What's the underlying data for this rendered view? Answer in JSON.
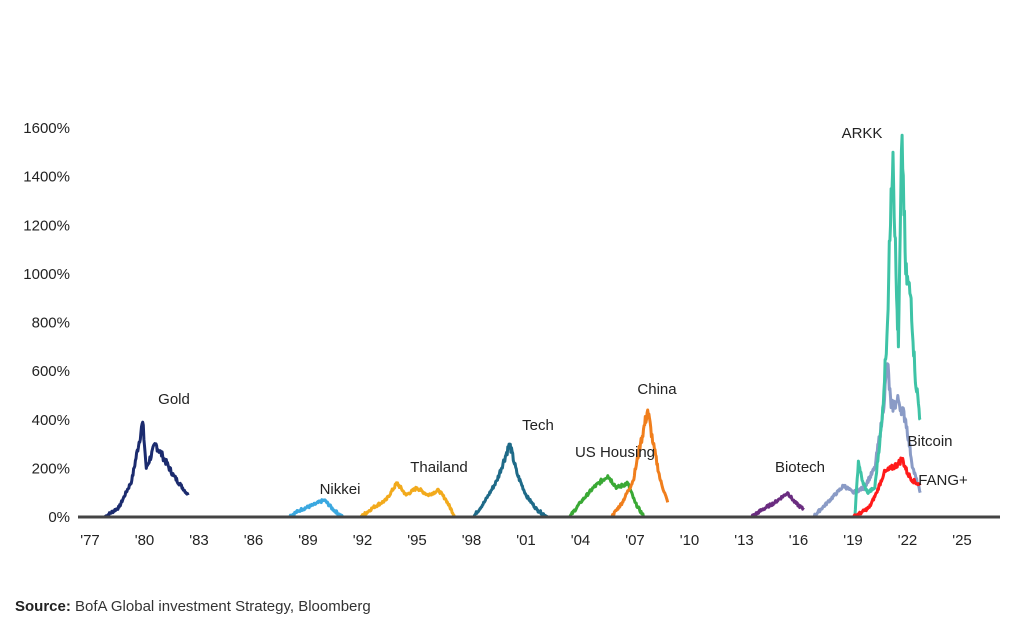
{
  "chart_data": {
    "type": "line",
    "title": "",
    "xlabel": "",
    "ylabel": "",
    "xlim": [
      1977,
      2027
    ],
    "ylim": [
      0,
      1600
    ],
    "x_ticks": [
      "'77",
      "'80",
      "'83",
      "'86",
      "'89",
      "'92",
      "'95",
      "'98",
      "'01",
      "'04",
      "'07",
      "'10",
      "'13",
      "'16",
      "'19",
      "'22",
      "'25"
    ],
    "y_ticks": [
      "0%",
      "200%",
      "400%",
      "600%",
      "800%",
      "1000%",
      "1200%",
      "1400%",
      "1600%"
    ],
    "grid": false,
    "series": [
      {
        "name": "Gold",
        "color": "#1b2b6e",
        "points": [
          [
            1977.8,
            0
          ],
          [
            1978.6,
            40
          ],
          [
            1979.3,
            150
          ],
          [
            1979.9,
            390
          ],
          [
            1980.1,
            200
          ],
          [
            1980.6,
            300
          ],
          [
            1981.0,
            250
          ],
          [
            1981.6,
            170
          ],
          [
            1982.0,
            130
          ],
          [
            1982.4,
            90
          ]
        ]
      },
      {
        "name": "Nikkei",
        "color": "#3aa8e0",
        "points": [
          [
            1987.9,
            0
          ],
          [
            1988.6,
            30
          ],
          [
            1989.3,
            50
          ],
          [
            1989.9,
            70
          ],
          [
            1990.4,
            30
          ],
          [
            1990.9,
            0
          ]
        ]
      },
      {
        "name": "Thailand",
        "color": "#f2aa1c",
        "points": [
          [
            1991.9,
            0
          ],
          [
            1992.6,
            40
          ],
          [
            1993.3,
            70
          ],
          [
            1993.9,
            140
          ],
          [
            1994.4,
            90
          ],
          [
            1995.0,
            120
          ],
          [
            1995.6,
            90
          ],
          [
            1996.2,
            110
          ],
          [
            1996.6,
            70
          ],
          [
            1997.1,
            0
          ]
        ]
      },
      {
        "name": "Tech",
        "color": "#1e6a88",
        "points": [
          [
            1998.1,
            0
          ],
          [
            1998.7,
            60
          ],
          [
            1999.4,
            150
          ],
          [
            2000.1,
            300
          ],
          [
            2000.5,
            180
          ],
          [
            2001.0,
            90
          ],
          [
            2001.6,
            30
          ],
          [
            2002.2,
            0
          ]
        ]
      },
      {
        "name": "US Housing",
        "color": "#3aa935",
        "points": [
          [
            2003.4,
            0
          ],
          [
            2004.0,
            60
          ],
          [
            2004.7,
            120
          ],
          [
            2005.5,
            170
          ],
          [
            2006.0,
            120
          ],
          [
            2006.6,
            140
          ],
          [
            2007.0,
            60
          ],
          [
            2007.5,
            0
          ]
        ]
      },
      {
        "name": "China",
        "color": "#f07e1c",
        "points": [
          [
            2005.7,
            0
          ],
          [
            2006.3,
            60
          ],
          [
            2006.9,
            150
          ],
          [
            2007.3,
            300
          ],
          [
            2007.7,
            440
          ],
          [
            2008.0,
            300
          ],
          [
            2008.4,
            150
          ],
          [
            2008.8,
            60
          ]
        ]
      },
      {
        "name": "Biotech",
        "color": "#6a2c80",
        "points": [
          [
            2013.4,
            0
          ],
          [
            2014.0,
            30
          ],
          [
            2014.7,
            60
          ],
          [
            2015.4,
            100
          ],
          [
            2015.8,
            60
          ],
          [
            2016.3,
            30
          ]
        ]
      },
      {
        "name": "ARKK",
        "color": "#8a9bc6",
        "points": [
          [
            2016.8,
            0
          ],
          [
            2017.6,
            60
          ],
          [
            2018.5,
            130
          ],
          [
            2019.0,
            100
          ],
          [
            2019.6,
            120
          ],
          [
            2020.2,
            200
          ],
          [
            2020.6,
            400
          ],
          [
            2020.9,
            630
          ],
          [
            2021.1,
            450
          ],
          [
            2021.5,
            480
          ],
          [
            2021.9,
            400
          ],
          [
            2022.3,
            200
          ],
          [
            2022.7,
            100
          ]
        ]
      },
      {
        "name": "Bitcoin",
        "color": "#3ec3a6",
        "points": [
          [
            2019.1,
            0
          ],
          [
            2019.3,
            230
          ],
          [
            2019.5,
            150
          ],
          [
            2019.8,
            100
          ],
          [
            2020.2,
            120
          ],
          [
            2020.6,
            400
          ],
          [
            2020.9,
            800
          ],
          [
            2021.1,
            1350
          ],
          [
            2021.2,
            1500
          ],
          [
            2021.4,
            900
          ],
          [
            2021.5,
            700
          ],
          [
            2021.7,
            1570
          ],
          [
            2021.9,
            1000
          ],
          [
            2022.2,
            900
          ],
          [
            2022.4,
            600
          ],
          [
            2022.7,
            400
          ]
        ]
      },
      {
        "name": "FANG+",
        "color": "#ff1a1a",
        "points": [
          [
            2019.0,
            0
          ],
          [
            2019.5,
            20
          ],
          [
            2019.9,
            40
          ],
          [
            2020.3,
            100
          ],
          [
            2020.7,
            180
          ],
          [
            2021.1,
            200
          ],
          [
            2021.5,
            220
          ],
          [
            2021.7,
            240
          ],
          [
            2022.0,
            180
          ],
          [
            2022.3,
            150
          ],
          [
            2022.7,
            130
          ]
        ]
      }
    ]
  },
  "source": {
    "label": "Source:",
    "text": " BofA Global investment Strategy, Bloomberg"
  }
}
